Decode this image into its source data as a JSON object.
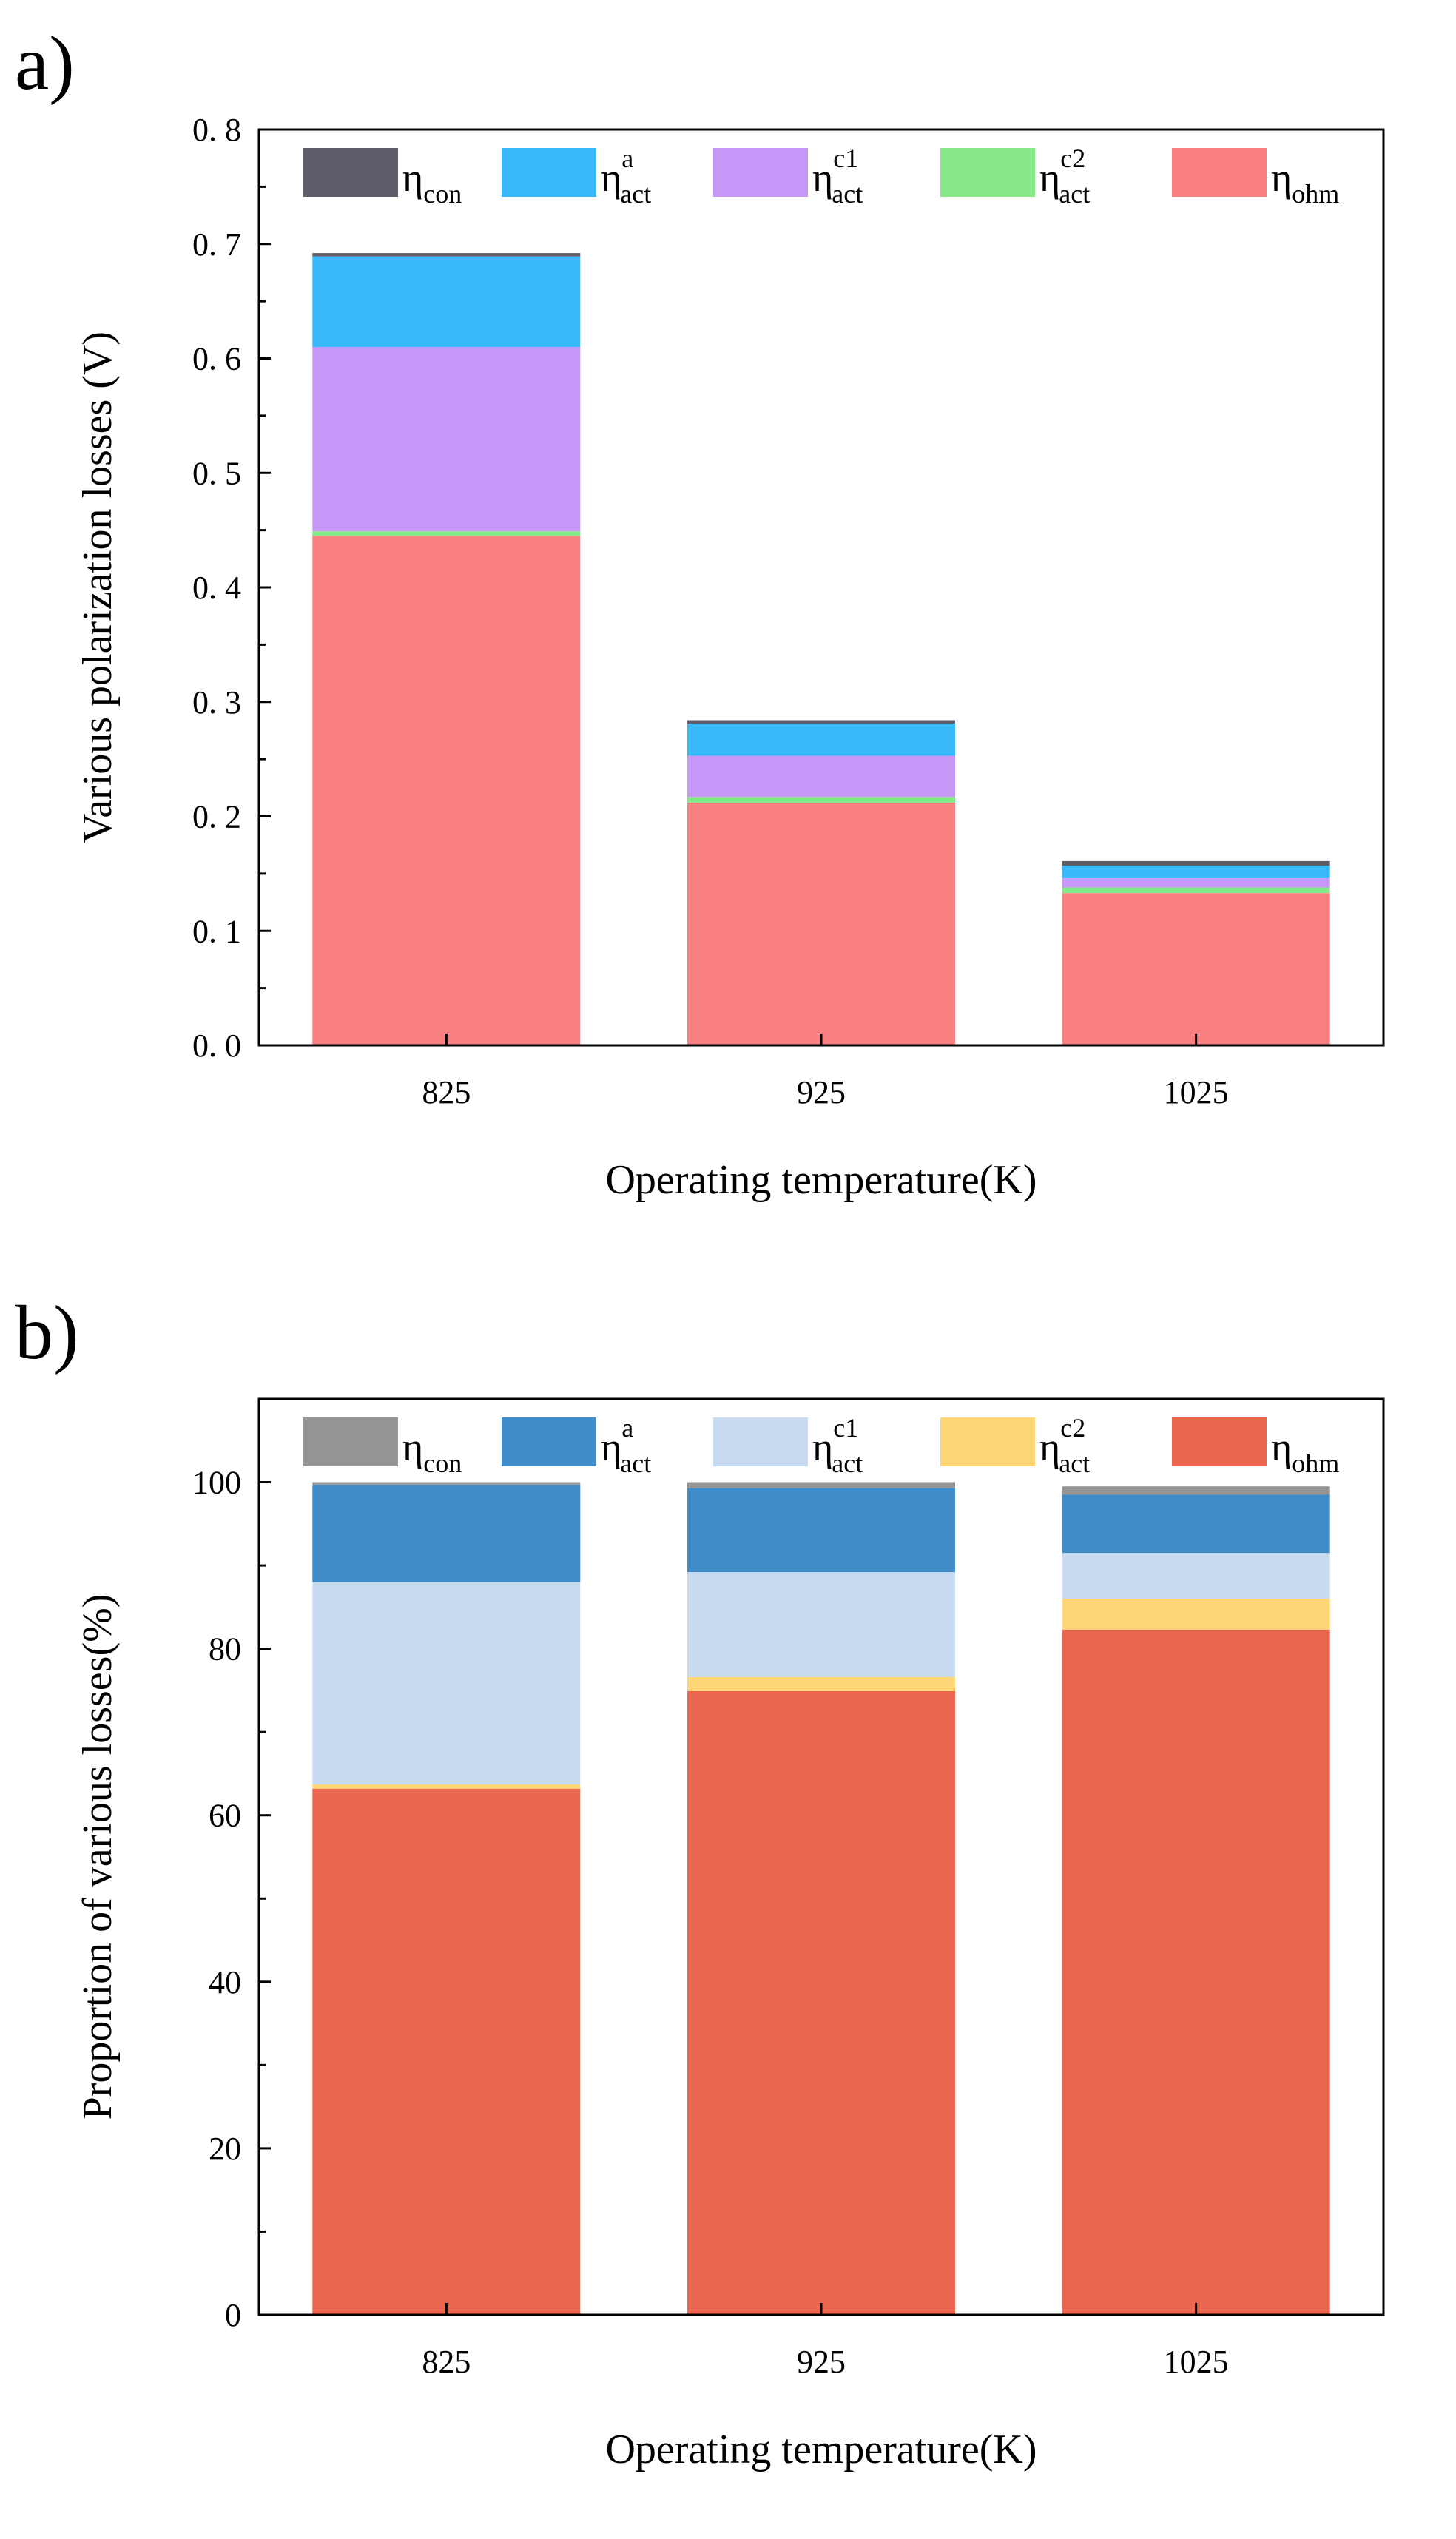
{
  "chart_data": [
    {
      "panel_label": "a)",
      "type": "bar",
      "stacked": true,
      "title": "",
      "xlabel": "Operating temperature(K)",
      "ylabel": "Various polarization losses (V)",
      "categories": [
        "825",
        "925",
        "1025"
      ],
      "ylim": [
        0,
        0.8
      ],
      "yticks": [
        "0. 0",
        "0. 1",
        "0. 2",
        "0. 3",
        "0. 4",
        "0. 5",
        "0. 6",
        "0. 7",
        "0. 8"
      ],
      "grid": false,
      "legend_position": "top",
      "series": [
        {
          "key": "ohm",
          "base": "η",
          "sub": "ohm",
          "sup": "",
          "color": "#F88080",
          "values": [
            0.445,
            0.212,
            0.133
          ]
        },
        {
          "key": "act_c2",
          "base": "η",
          "sub": "act",
          "sup": "c2",
          "color": "#88E888",
          "values": [
            0.004,
            0.005,
            0.005
          ]
        },
        {
          "key": "act_c1",
          "base": "η",
          "sub": "act",
          "sup": "c1",
          "color": "#C898F8",
          "values": [
            0.161,
            0.036,
            0.008
          ]
        },
        {
          "key": "act_a",
          "base": "η",
          "sub": "act",
          "sup": "a",
          "color": "#38B8F8",
          "values": [
            0.079,
            0.028,
            0.011
          ]
        },
        {
          "key": "con",
          "base": "η",
          "sub": "con",
          "sup": "",
          "color": "#5E5E6A",
          "values": [
            0.003,
            0.003,
            0.004
          ]
        }
      ],
      "legend_order": [
        "con",
        "act_a",
        "act_c1",
        "act_c2",
        "ohm"
      ]
    },
    {
      "panel_label": "b)",
      "type": "bar",
      "stacked": true,
      "title": "",
      "xlabel": "Operating temperature(K)",
      "ylabel": "Proportion of various losses(%)",
      "categories": [
        "825",
        "925",
        "1025"
      ],
      "ylim": [
        0,
        110
      ],
      "yticks": [
        "0",
        "20",
        "40",
        "60",
        "80",
        "100"
      ],
      "grid": false,
      "legend_position": "top",
      "series": [
        {
          "key": "ohm",
          "base": "η",
          "sub": "ohm",
          "sup": "",
          "color": "#EA664E",
          "values": [
            63.2,
            74.9,
            82.3
          ]
        },
        {
          "key": "act_c2",
          "base": "η",
          "sub": "act",
          "sup": "c2",
          "color": "#FDD776",
          "values": [
            0.5,
            1.7,
            3.7
          ]
        },
        {
          "key": "act_c1",
          "base": "η",
          "sub": "act",
          "sup": "c1",
          "color": "#C8DBF1",
          "values": [
            24.3,
            12.6,
            5.5
          ]
        },
        {
          "key": "act_a",
          "base": "η",
          "sub": "act",
          "sup": "a",
          "color": "#408CC9",
          "values": [
            11.7,
            10.1,
            7.0
          ]
        },
        {
          "key": "con",
          "base": "η",
          "sub": "con",
          "sup": "",
          "color": "#959595",
          "values": [
            0.3,
            0.7,
            1.0
          ]
        }
      ],
      "legend_order": [
        "con",
        "act_a",
        "act_c1",
        "act_c2",
        "ohm"
      ]
    }
  ]
}
